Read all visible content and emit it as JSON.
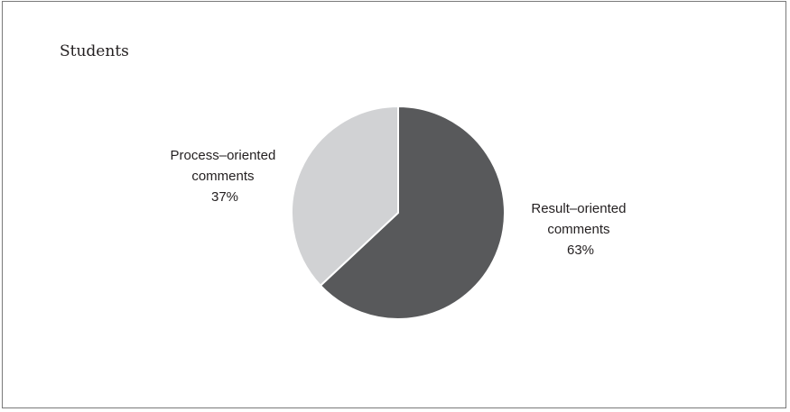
{
  "chart_data": {
    "type": "pie",
    "title": "Students",
    "slices": [
      {
        "label_lines": [
          "Result–oriented",
          "comments"
        ],
        "value_label": "63%",
        "value": 63,
        "color": "#58595b"
      },
      {
        "label_lines": [
          "Process–oriented",
          "comments"
        ],
        "value_label": "37%",
        "value": 37,
        "color": "#d1d2d4"
      }
    ],
    "start_angle_deg": 0,
    "direction": "clockwise",
    "slice_border_color": "#ffffff",
    "frame_border_color": "#7a7a7a",
    "legend": "none",
    "grid": false
  }
}
